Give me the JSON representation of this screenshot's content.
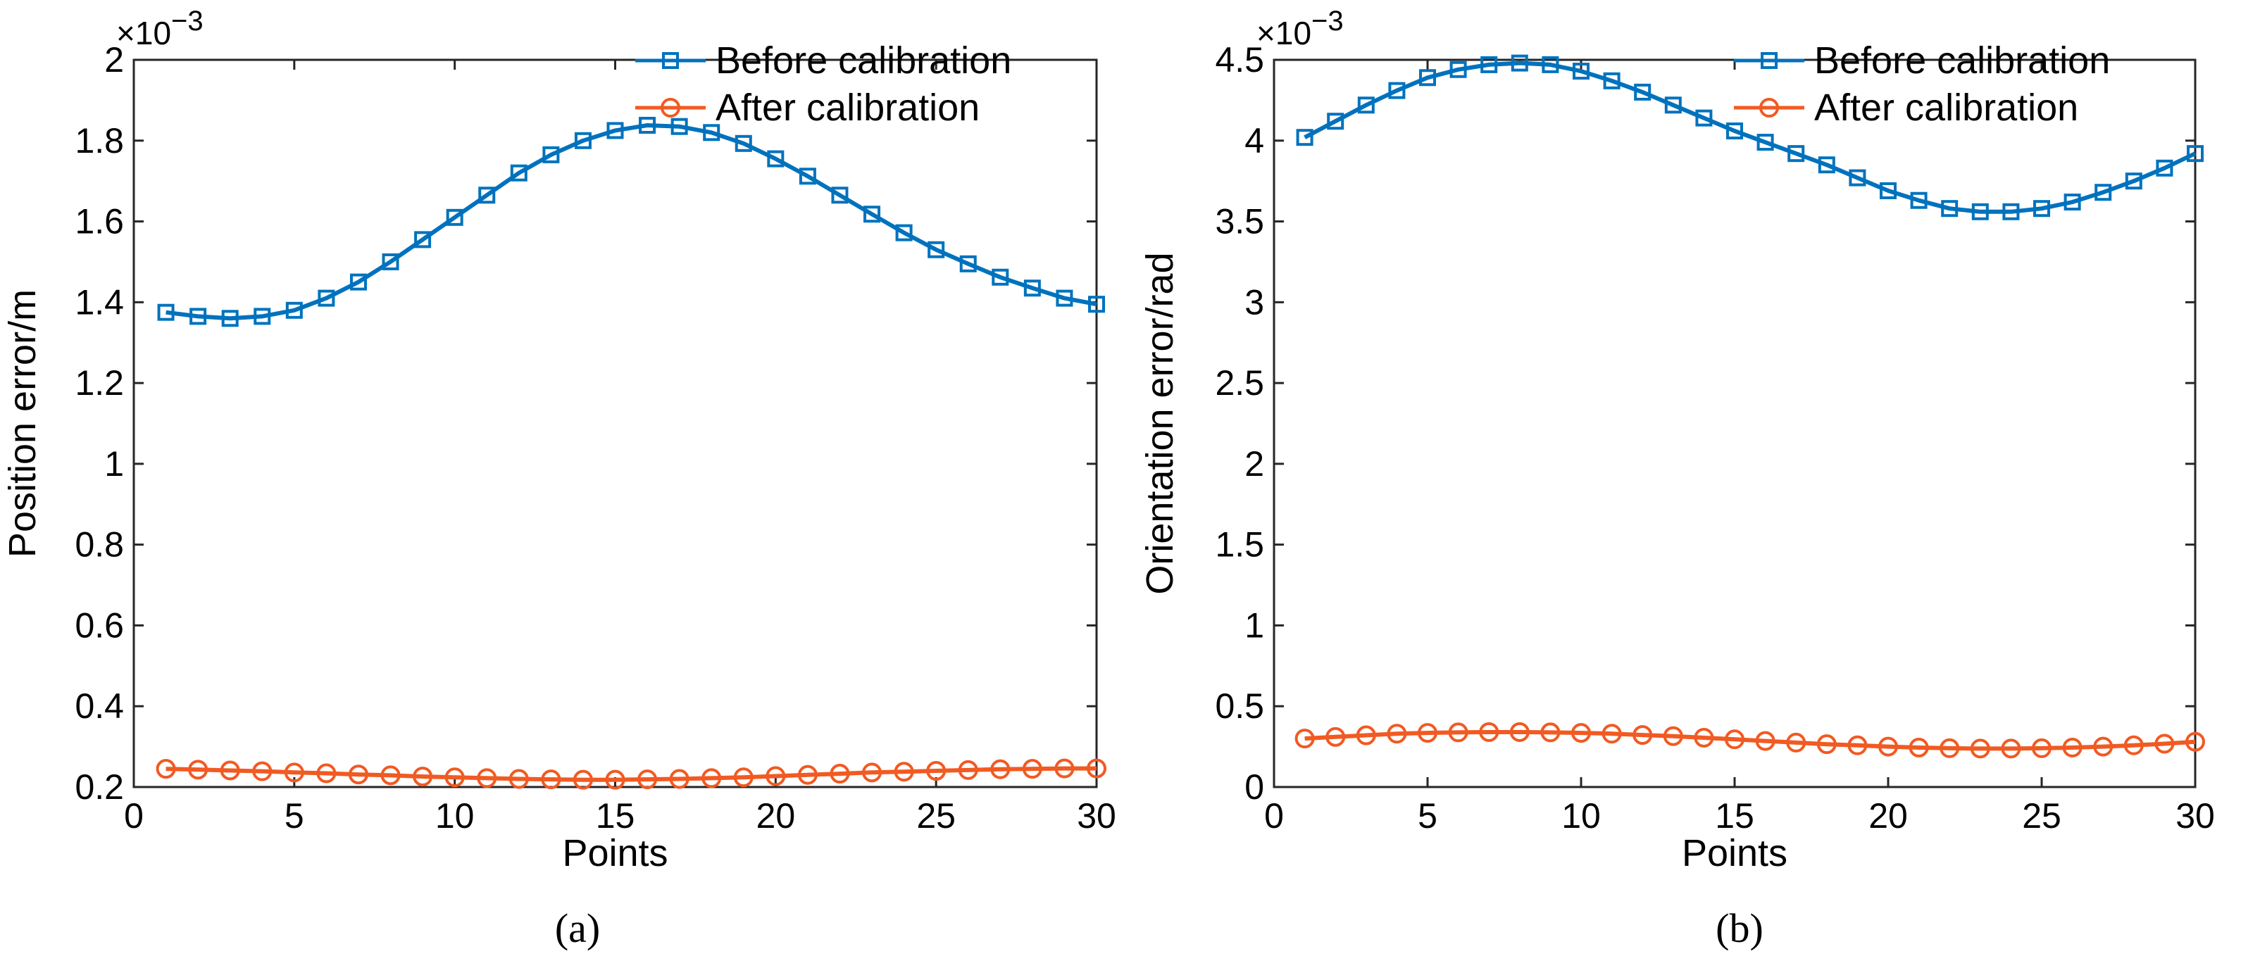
{
  "chart_data": [
    {
      "type": "line",
      "panel_label": "(a)",
      "title": "",
      "xlabel": "Points",
      "ylabel": "Position error/m",
      "xlim": [
        0,
        30
      ],
      "ylim": [
        0.2,
        2.0
      ],
      "y_multiplier": "×10",
      "y_multiplier_exp": "−3",
      "xticks": [
        0,
        5,
        10,
        15,
        20,
        25,
        30
      ],
      "xtick_labels": [
        "0",
        "5",
        "10",
        "15",
        "20",
        "25",
        "30"
      ],
      "yticks": [
        0.2,
        0.4,
        0.6,
        0.8,
        1.0,
        1.2,
        1.4,
        1.6,
        1.8,
        2.0
      ],
      "ytick_labels": [
        "0.2",
        "0.4",
        "0.6",
        "0.8",
        "1",
        "1.2",
        "1.4",
        "1.6",
        "1.8",
        "2"
      ],
      "grid": false,
      "legend_position": "top-right",
      "x": [
        1,
        2,
        3,
        4,
        5,
        6,
        7,
        8,
        9,
        10,
        11,
        12,
        13,
        14,
        15,
        16,
        17,
        18,
        19,
        20,
        21,
        22,
        23,
        24,
        25,
        26,
        27,
        28,
        29,
        30
      ],
      "series": [
        {
          "name": "Before calibration",
          "color": "#0072bd",
          "marker": "square",
          "values": [
            1.375,
            1.365,
            1.36,
            1.365,
            1.38,
            1.41,
            1.45,
            1.5,
            1.555,
            1.61,
            1.665,
            1.72,
            1.765,
            1.8,
            1.825,
            1.838,
            1.835,
            1.82,
            1.793,
            1.755,
            1.712,
            1.665,
            1.618,
            1.572,
            1.53,
            1.495,
            1.462,
            1.435,
            1.41,
            1.395
          ]
        },
        {
          "name": "After calibration",
          "color": "#f15a22",
          "marker": "circle",
          "values": [
            0.245,
            0.243,
            0.241,
            0.239,
            0.236,
            0.234,
            0.231,
            0.229,
            0.226,
            0.224,
            0.222,
            0.22,
            0.219,
            0.218,
            0.218,
            0.219,
            0.22,
            0.222,
            0.224,
            0.227,
            0.23,
            0.233,
            0.236,
            0.238,
            0.24,
            0.242,
            0.244,
            0.245,
            0.246,
            0.246
          ]
        }
      ]
    },
    {
      "type": "line",
      "panel_label": "(b)",
      "title": "",
      "xlabel": "Points",
      "ylabel": "Orientation error/rad",
      "xlim": [
        0,
        30
      ],
      "ylim": [
        0,
        4.5
      ],
      "y_multiplier": "×10",
      "y_multiplier_exp": "−3",
      "xticks": [
        0,
        5,
        10,
        15,
        20,
        25,
        30
      ],
      "xtick_labels": [
        "0",
        "5",
        "10",
        "15",
        "20",
        "25",
        "30"
      ],
      "yticks": [
        0,
        0.5,
        1.0,
        1.5,
        2.0,
        2.5,
        3.0,
        3.5,
        4.0,
        4.5
      ],
      "ytick_labels": [
        "0",
        "0.5",
        "1",
        "1.5",
        "2",
        "2.5",
        "3",
        "3.5",
        "4",
        "4.5"
      ],
      "grid": false,
      "legend_position": "top-right",
      "x": [
        1,
        2,
        3,
        4,
        5,
        6,
        7,
        8,
        9,
        10,
        11,
        12,
        13,
        14,
        15,
        16,
        17,
        18,
        19,
        20,
        21,
        22,
        23,
        24,
        25,
        26,
        27,
        28,
        29,
        30
      ],
      "series": [
        {
          "name": "Before calibration",
          "color": "#0072bd",
          "marker": "square",
          "values": [
            4.02,
            4.12,
            4.22,
            4.31,
            4.39,
            4.44,
            4.47,
            4.48,
            4.47,
            4.43,
            4.37,
            4.3,
            4.22,
            4.14,
            4.06,
            3.99,
            3.92,
            3.85,
            3.77,
            3.69,
            3.63,
            3.58,
            3.56,
            3.56,
            3.58,
            3.62,
            3.68,
            3.75,
            3.83,
            3.92
          ]
        },
        {
          "name": "After calibration",
          "color": "#f15a22",
          "marker": "circle",
          "values": [
            0.3,
            0.31,
            0.32,
            0.33,
            0.335,
            0.338,
            0.34,
            0.34,
            0.338,
            0.335,
            0.33,
            0.322,
            0.315,
            0.305,
            0.295,
            0.285,
            0.275,
            0.265,
            0.258,
            0.25,
            0.244,
            0.24,
            0.238,
            0.238,
            0.24,
            0.244,
            0.25,
            0.258,
            0.268,
            0.28
          ]
        }
      ]
    }
  ]
}
